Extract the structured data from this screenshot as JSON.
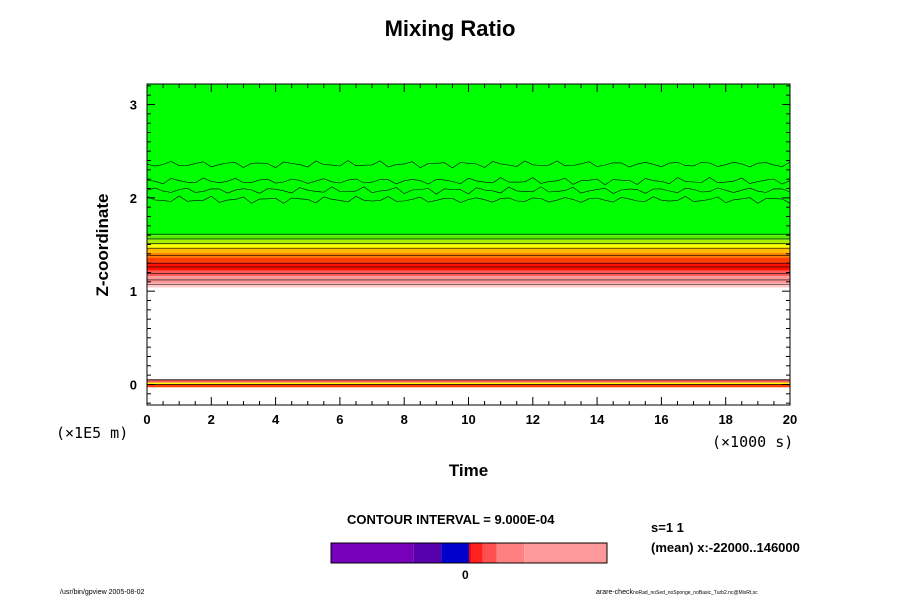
{
  "chart_data": {
    "type": "heatmap",
    "title": "Mixing Ratio",
    "xlabel": "Time",
    "ylabel": "Z-coordinate",
    "x_unit_label": "(×1000 s)",
    "y_unit_label": "(×1E5 m)",
    "xlim": [
      0,
      20
    ],
    "ylim": [
      -0.22,
      3.22
    ],
    "x_ticks": [
      0,
      2,
      4,
      6,
      8,
      10,
      12,
      14,
      16,
      18,
      20
    ],
    "y_ticks": [
      0,
      1,
      2,
      3
    ],
    "bands": [
      {
        "z0": 1.6,
        "z1": 3.22,
        "color": "#00ff00"
      },
      {
        "z0": 1.55,
        "z1": 1.6,
        "color": "#55ee00"
      },
      {
        "z0": 1.5,
        "z1": 1.55,
        "color": "#aaee00"
      },
      {
        "z0": 1.46,
        "z1": 1.5,
        "color": "#ffff00"
      },
      {
        "z0": 1.41,
        "z1": 1.46,
        "color": "#ffbb00"
      },
      {
        "z0": 1.36,
        "z1": 1.41,
        "color": "#ff8000"
      },
      {
        "z0": 1.31,
        "z1": 1.36,
        "color": "#ff4000"
      },
      {
        "z0": 1.22,
        "z1": 1.31,
        "color": "#ff1000"
      },
      {
        "z0": 1.16,
        "z1": 1.22,
        "color": "#ff5a5a"
      },
      {
        "z0": 1.08,
        "z1": 1.16,
        "color": "#ff9999"
      },
      {
        "z0": 1.04,
        "z1": 1.08,
        "color": "#ffc8c8"
      },
      {
        "z0": 0.02,
        "z1": 0.05,
        "color": "#ff5a5a"
      },
      {
        "z0": 0.0,
        "z1": 0.02,
        "color": "#ffff00"
      },
      {
        "z0": -0.03,
        "z1": 0.0,
        "color": "#ff4000"
      }
    ],
    "contour_levels": [
      1.07,
      1.12,
      1.19,
      1.26,
      1.3,
      1.38,
      1.46,
      1.51,
      1.56,
      1.61
    ],
    "colorbar": {
      "label": "0",
      "segments": [
        {
          "color": "#7700bb",
          "span": 0.3
        },
        {
          "color": "#5500aa",
          "span": 0.1
        },
        {
          "color": "#0000cc",
          "span": 0.1
        },
        {
          "color": "#ff0000",
          "span": 0.01
        },
        {
          "color": "#ff2020",
          "span": 0.04
        },
        {
          "color": "#ff5050",
          "span": 0.05
        },
        {
          "color": "#ff8080",
          "span": 0.1
        },
        {
          "color": "#ff9999",
          "span": 0.3
        }
      ]
    },
    "grid": false,
    "legend": "colorbar-bottom"
  },
  "contour_interval": "CONTOUR INTERVAL = 9.000E-04",
  "meta_lines": [
    "s=1 1",
    "(mean) x:-22000..146000"
  ],
  "footer_left": "/usr/bin/gpview 2005-08-02",
  "footer_right_main": "arare-check",
  "footer_right_sub": "noRad_noSed_noSponge_noBasic_Turb2.nc@MixRt,sc"
}
